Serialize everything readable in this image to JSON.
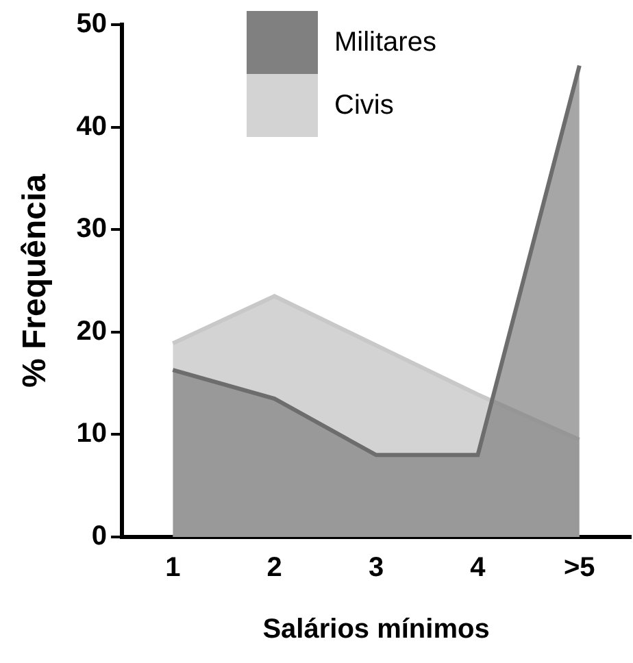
{
  "chart_data": {
    "type": "area",
    "xlabel": "Salários mínimos",
    "ylabel": "% Frequência",
    "categories": [
      "1",
      "2",
      "3",
      "4",
      ">5"
    ],
    "series": [
      {
        "name": "Militares",
        "color": "#808080",
        "values": [
          16.3,
          13.5,
          8,
          8,
          46
        ]
      },
      {
        "name": "Civis",
        "color": "#d3d3d3",
        "values": [
          18.9,
          23.5,
          18.7,
          13.9,
          9.5
        ]
      }
    ],
    "ylim": [
      0,
      50
    ],
    "yticks": [
      0,
      10,
      20,
      30,
      40,
      50
    ],
    "grid": false,
    "legend": "top"
  }
}
